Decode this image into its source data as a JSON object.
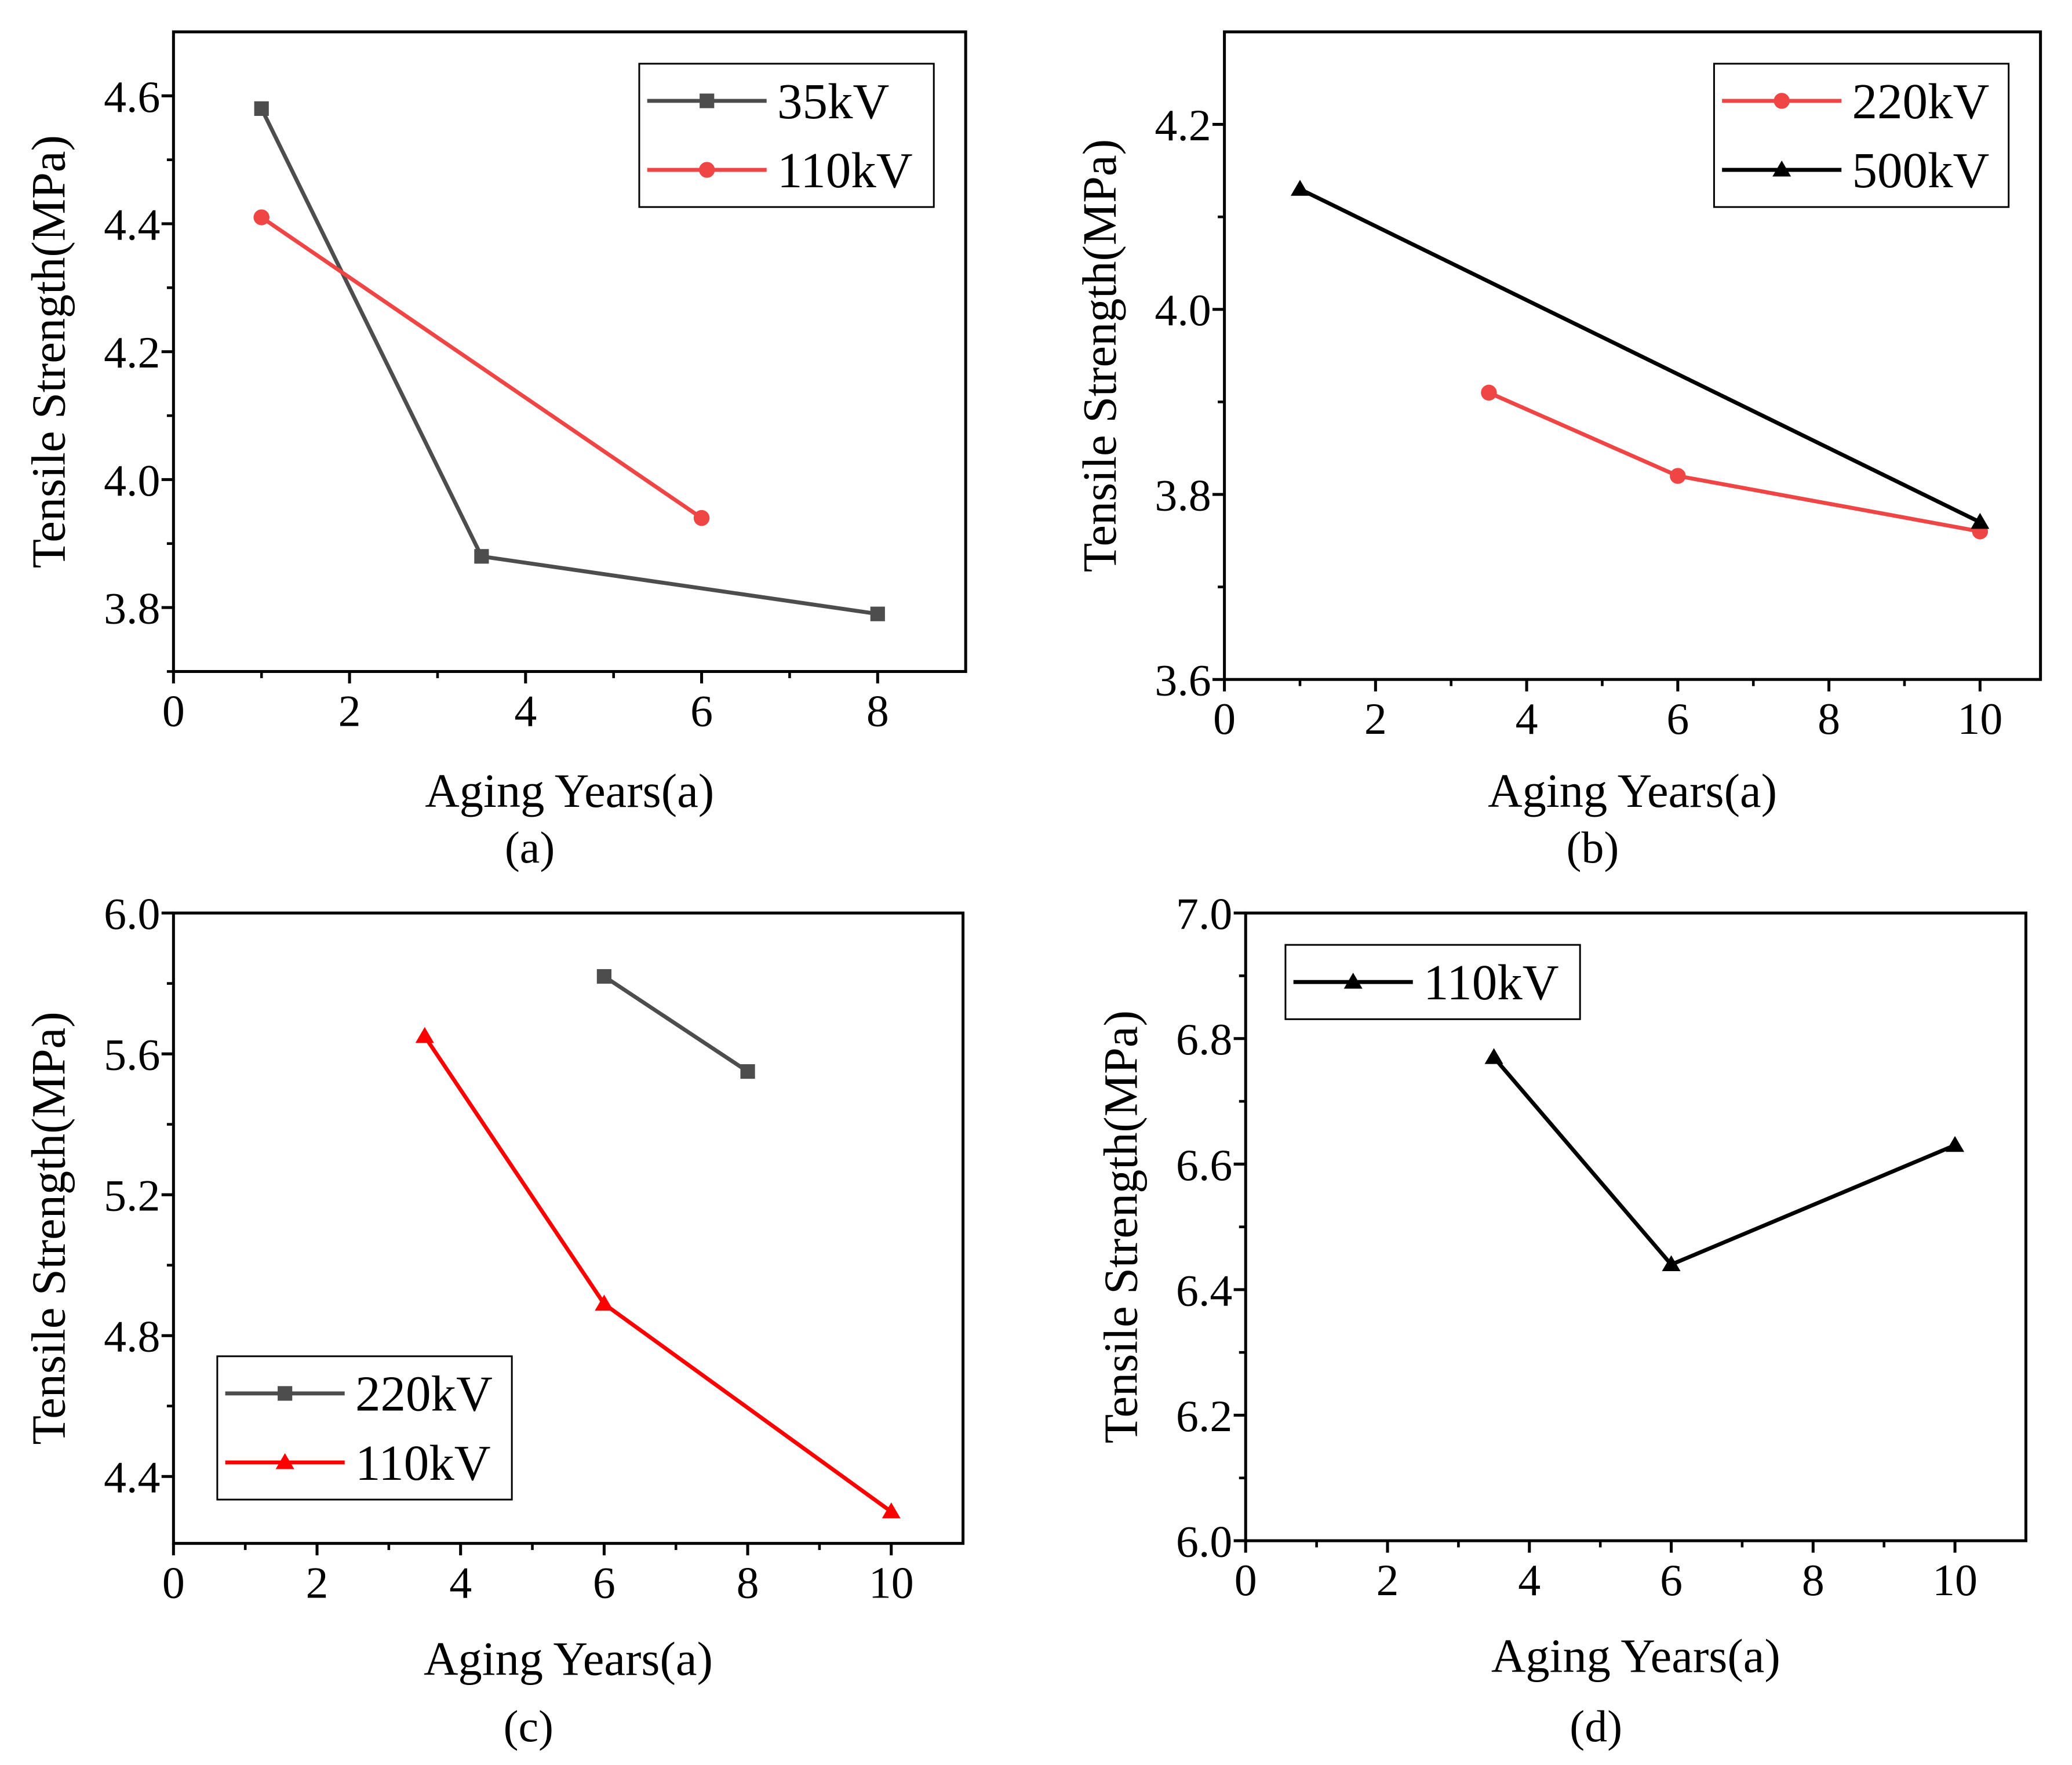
{
  "chart_data": [
    {
      "type": "line",
      "caption": "(a)",
      "caption_letter": "a",
      "xlabel": "Aging Years(a)",
      "ylabel": "Tensile Strength(MPa)",
      "xlim": [
        0,
        9
      ],
      "ylim": [
        3.7,
        4.7
      ],
      "xticks": [
        0,
        2,
        4,
        6,
        8
      ],
      "xtick_labels": [
        "0",
        "2",
        "4",
        "6",
        "8"
      ],
      "xminor": [
        1,
        3,
        5,
        7
      ],
      "yticks": [
        3.8,
        4.0,
        4.2,
        4.4,
        4.6
      ],
      "ytick_labels": [
        "3.8",
        "4.0",
        "4.2",
        "4.4",
        "4.6"
      ],
      "yminor": [
        3.7,
        3.9,
        4.1,
        4.3,
        4.5
      ],
      "legend_position": "top-right",
      "series": [
        {
          "name": "35kV",
          "marker": "square",
          "color": "#4d4d4d",
          "x": [
            1,
            3.5,
            8
          ],
          "y": [
            4.58,
            3.88,
            3.79
          ]
        },
        {
          "name": "110kV",
          "marker": "circle",
          "color": "#f04545",
          "x": [
            1,
            6
          ],
          "y": [
            4.41,
            3.94
          ]
        }
      ]
    },
    {
      "type": "line",
      "caption": "(b)",
      "caption_letter": "b",
      "xlabel": "Aging Years(a)",
      "ylabel": "Tensile Strength(MPa)",
      "xlim": [
        0,
        10.8
      ],
      "ylim": [
        3.6,
        4.3
      ],
      "xticks": [
        0,
        2,
        4,
        6,
        8,
        10
      ],
      "xtick_labels": [
        "0",
        "2",
        "4",
        "6",
        "8",
        "10"
      ],
      "xminor": [
        1,
        3,
        5,
        7,
        9
      ],
      "yticks": [
        3.6,
        3.8,
        4.0,
        4.2
      ],
      "ytick_labels": [
        "3.6",
        "3.8",
        "4.0",
        "4.2"
      ],
      "yminor": [
        3.7,
        3.9,
        4.1
      ],
      "legend_position": "top-right",
      "series": [
        {
          "name": "220kV",
          "marker": "circle",
          "color": "#f04545",
          "x": [
            3.5,
            6,
            10
          ],
          "y": [
            3.91,
            3.82,
            3.76
          ]
        },
        {
          "name": "500kV",
          "marker": "triangle",
          "color": "#000000",
          "x": [
            1,
            10
          ],
          "y": [
            4.13,
            3.77
          ]
        }
      ]
    },
    {
      "type": "line",
      "caption": "(c)",
      "caption_letter": "c",
      "xlabel": "Aging Years(a)",
      "ylabel": "Tensile Strength(MPa)",
      "xlim": [
        0,
        11
      ],
      "ylim": [
        4.21,
        6.0
      ],
      "xticks": [
        0,
        2,
        4,
        6,
        8,
        10
      ],
      "xtick_labels": [
        "0",
        "2",
        "4",
        "6",
        "8",
        "10"
      ],
      "xminor": [
        1,
        3,
        5,
        7,
        9
      ],
      "yticks": [
        4.4,
        4.8,
        5.2,
        5.6,
        6.0
      ],
      "ytick_labels": [
        "4.4",
        "4.8",
        "5.2",
        "5.6",
        "6.0"
      ],
      "yminor": [
        4.6,
        5.0,
        5.4,
        5.8
      ],
      "legend_position": "bottom-left",
      "series": [
        {
          "name": "220kV",
          "marker": "square",
          "color": "#4d4d4d",
          "x": [
            6,
            8
          ],
          "y": [
            5.82,
            5.55
          ]
        },
        {
          "name": "110kV",
          "marker": "triangle",
          "color": "#ff0000",
          "x": [
            3.5,
            6,
            10
          ],
          "y": [
            5.65,
            4.89,
            4.3
          ]
        }
      ]
    },
    {
      "type": "line",
      "caption": "(d)",
      "caption_letter": "d",
      "xlabel": "Aging Years(a)",
      "ylabel": "Tensile Strength(MPa)",
      "xlim": [
        0,
        11
      ],
      "ylim": [
        6.0,
        7.0
      ],
      "xticks": [
        0,
        2,
        4,
        6,
        8,
        10
      ],
      "xtick_labels": [
        "0",
        "2",
        "4",
        "6",
        "8",
        "10"
      ],
      "xminor": [
        1,
        3,
        5,
        7,
        9
      ],
      "yticks": [
        6.0,
        6.2,
        6.4,
        6.6,
        6.8,
        7.0
      ],
      "ytick_labels": [
        "6.0",
        "6.2",
        "6.4",
        "6.6",
        "6.8",
        "7.0"
      ],
      "yminor": [
        6.1,
        6.3,
        6.5,
        6.7,
        6.9
      ],
      "legend_position": "top-left",
      "series": [
        {
          "name": "110kV",
          "marker": "triangle",
          "color": "#000000",
          "x": [
            3.5,
            6,
            10
          ],
          "y": [
            6.77,
            6.44,
            6.63
          ]
        }
      ]
    }
  ]
}
